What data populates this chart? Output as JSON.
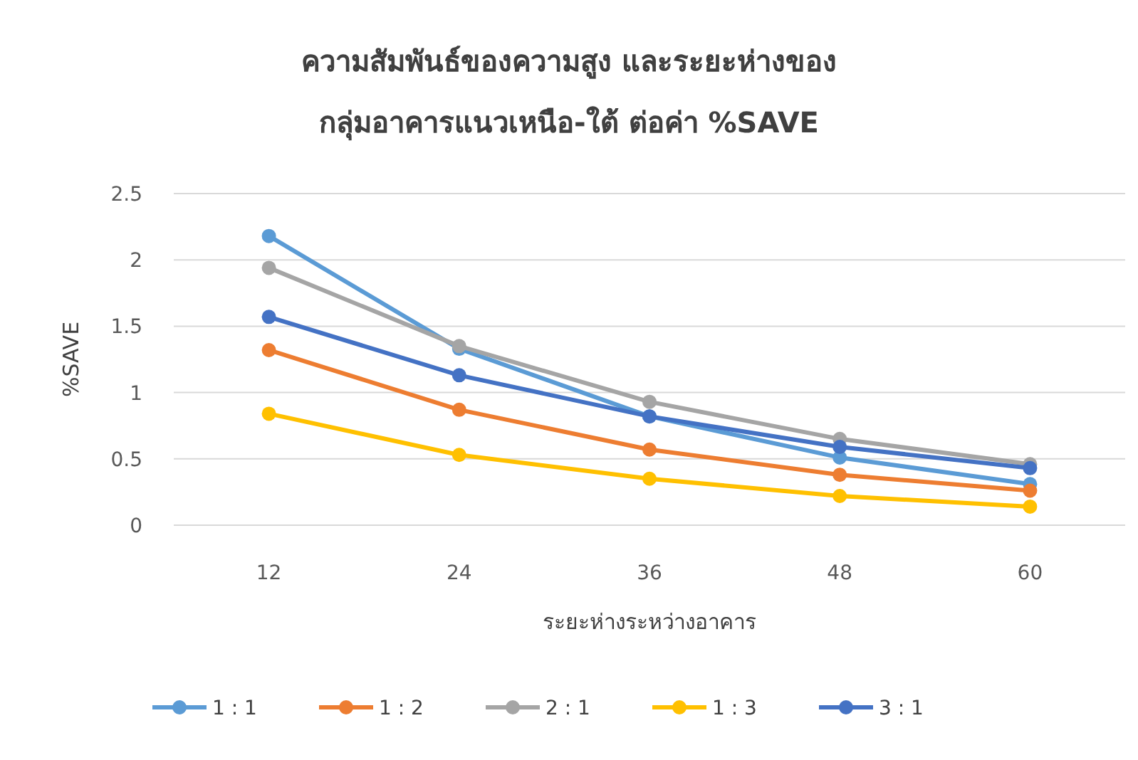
{
  "chart_data": {
    "type": "line",
    "title": "ความสัมพันธ์ของความสูง และระยะห่างของ",
    "subtitle": "กลุ่มอาคารแนวเหนือ-ใต้ ต่อค่า %SAVE",
    "xlabel": "ระยะห่างระหว่างอาคาร",
    "ylabel": "%SAVE",
    "categories": [
      "12",
      "24",
      "36",
      "48",
      "60"
    ],
    "ylim": [
      0,
      2.5
    ],
    "yticks": [
      0,
      0.5,
      1,
      1.5,
      2,
      2.5
    ],
    "grid": "y",
    "legend": "bottom",
    "marker": "circle",
    "line_style": "solid",
    "series": [
      {
        "name": "1 : 1",
        "color": "#5b9bd5",
        "values": [
          2.18,
          1.33,
          0.82,
          0.51,
          0.31
        ]
      },
      {
        "name": "1 : 2",
        "color": "#ed7d31",
        "values": [
          1.32,
          0.87,
          0.57,
          0.38,
          0.26
        ]
      },
      {
        "name": "2 : 1",
        "color": "#a5a5a5",
        "values": [
          1.94,
          1.35,
          0.93,
          0.65,
          0.46
        ]
      },
      {
        "name": "1 : 3",
        "color": "#ffc000",
        "values": [
          0.84,
          0.53,
          0.35,
          0.22,
          0.14
        ]
      },
      {
        "name": "3 : 1",
        "color": "#4472c4",
        "values": [
          1.57,
          1.13,
          0.82,
          0.59,
          0.43
        ]
      }
    ]
  }
}
